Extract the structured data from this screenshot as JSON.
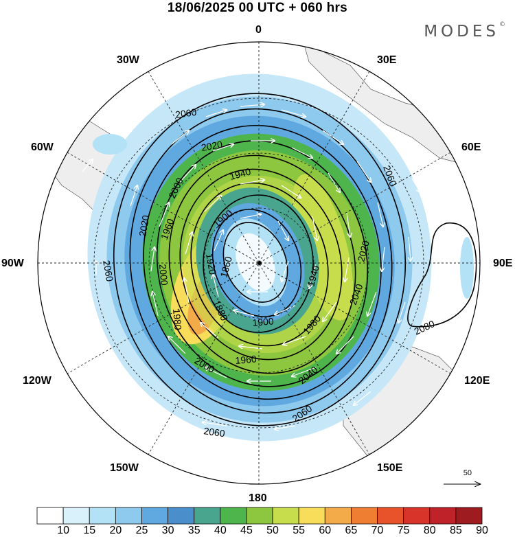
{
  "title": "18/06/2025  00 UTC  + 060 hrs",
  "brand": {
    "name": "MODES",
    "mark": "©"
  },
  "longitude_labels": {
    "n": "0",
    "nne": "30E",
    "ene": "60E",
    "e": "90E",
    "ese": "120E",
    "sse": "150E",
    "s": "180",
    "ssw": "150W",
    "wsw": "120W",
    "w": "90W",
    "wnw": "60W",
    "nnw": "30W"
  },
  "contours": [
    {
      "label": "2080"
    },
    {
      "label": "2060"
    },
    {
      "label": "2040"
    },
    {
      "label": "2020"
    },
    {
      "label": "2000"
    },
    {
      "label": "1980"
    },
    {
      "label": "1960"
    },
    {
      "label": "1940"
    },
    {
      "label": "1920"
    },
    {
      "label": "1900"
    },
    {
      "label": "1880"
    },
    {
      "label": "1860"
    }
  ],
  "reference_vector": {
    "label": "50"
  },
  "colorbar": {
    "labels": [
      "10",
      "15",
      "20",
      "25",
      "30",
      "35",
      "40",
      "45",
      "50",
      "55",
      "60",
      "65",
      "70",
      "75",
      "80",
      "85",
      "90"
    ],
    "colors": [
      "#ffffff",
      "#d8f1fb",
      "#b3e1f6",
      "#8ec9ee",
      "#5fa9e0",
      "#4a8fcc",
      "#4aa58e",
      "#4eb54c",
      "#8dc63f",
      "#c8dd4c",
      "#f7dd5a",
      "#f3ab4a",
      "#ef7e33",
      "#e8532c",
      "#d9342a",
      "#c0222a",
      "#9e1b1f"
    ]
  }
}
